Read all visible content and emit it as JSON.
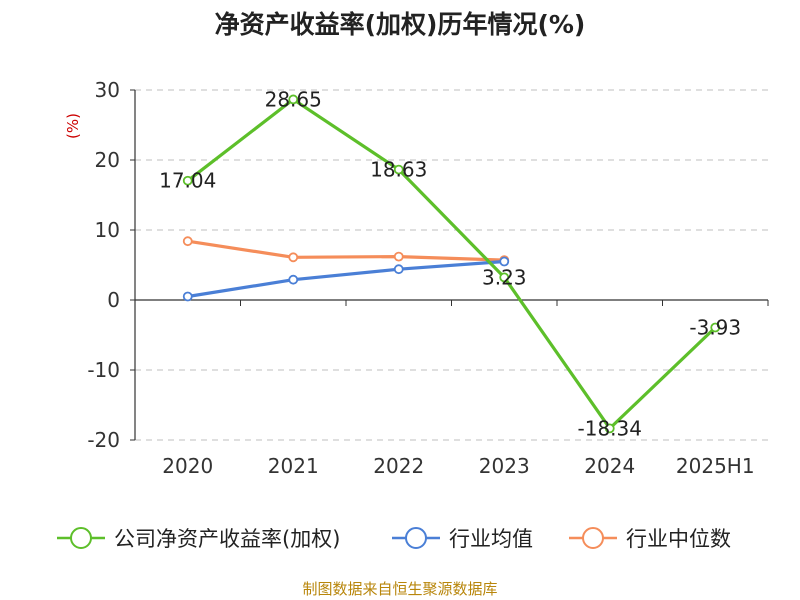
{
  "chart_data": {
    "type": "line",
    "title": "净资产收益率(加权)历年情况(%)",
    "ylabel": "(%)",
    "categories": [
      "2020",
      "2021",
      "2022",
      "2023",
      "2024",
      "2025H1"
    ],
    "ylim": [
      -20,
      30
    ],
    "yticks": [
      30,
      20,
      10,
      0,
      -10,
      -20
    ],
    "ytick_labels": [
      "30",
      "20",
      "10",
      "0",
      "-10",
      "-20"
    ],
    "grid": true,
    "legend_position": "bottom",
    "series": [
      {
        "name": "公司净资产收益率(加权)",
        "color": "#5dbf2a",
        "values": [
          17.04,
          28.65,
          18.63,
          3.23,
          -18.34,
          -3.93
        ],
        "labels": [
          "17.04",
          "28.65",
          "18.63",
          "3.23",
          "-18.34",
          "-3.93"
        ]
      },
      {
        "name": "行业均值",
        "color": "#4a7fd6",
        "values": [
          0.5,
          2.9,
          4.4,
          5.5,
          null,
          null
        ]
      },
      {
        "name": "行业中位数",
        "color": "#f58d5a",
        "values": [
          8.4,
          6.1,
          6.2,
          5.7,
          null,
          null
        ]
      }
    ],
    "source": "制图数据来自恒生聚源数据库"
  }
}
